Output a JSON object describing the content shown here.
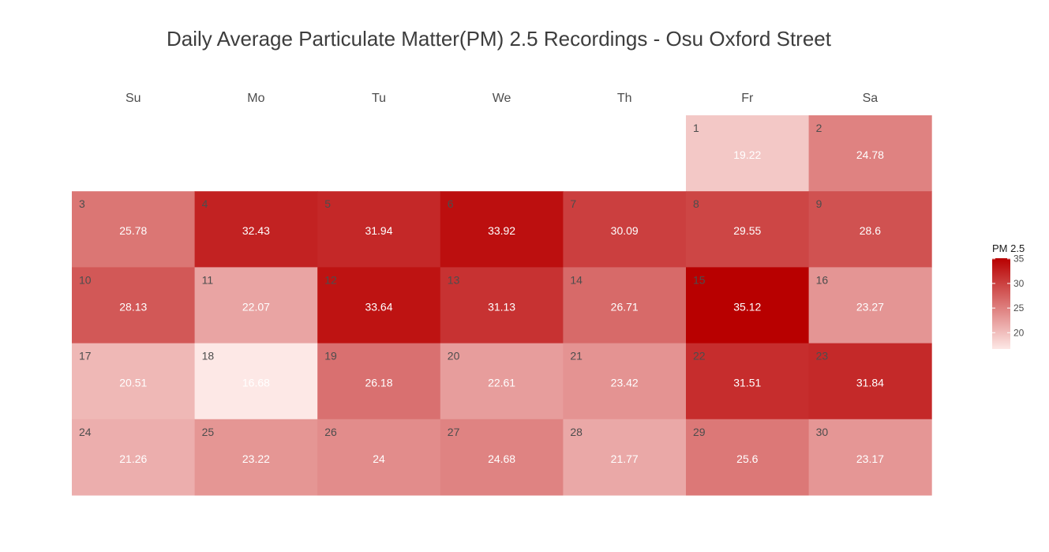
{
  "chart_data": {
    "type": "heatmap",
    "title": "Daily Average Particulate Matter(PM) 2.5 Recordings - Osu Oxford Street",
    "weekdays": [
      "Su",
      "Mo",
      "Tu",
      "We",
      "Th",
      "Fr",
      "Sa"
    ],
    "first_weekday_index": 5,
    "days": [
      1,
      2,
      3,
      4,
      5,
      6,
      7,
      8,
      9,
      10,
      11,
      12,
      13,
      14,
      15,
      16,
      17,
      18,
      19,
      20,
      21,
      22,
      23,
      24,
      25,
      26,
      27,
      28,
      29,
      30
    ],
    "value_labels": [
      "19.22",
      "24.78",
      "25.78",
      "32.43",
      "31.94",
      "33.92",
      "30.09",
      "29.55",
      "28.6",
      "28.13",
      "22.07",
      "33.64",
      "31.13",
      "26.71",
      "35.12",
      "23.27",
      "20.51",
      "16.68",
      "26.18",
      "22.61",
      "23.42",
      "31.51",
      "31.84",
      "21.26",
      "23.22",
      "24",
      "24.68",
      "21.77",
      "25.6",
      "23.17"
    ],
    "values": [
      19.22,
      24.78,
      25.78,
      32.43,
      31.94,
      33.92,
      30.09,
      29.55,
      28.6,
      28.13,
      22.07,
      33.64,
      31.13,
      26.71,
      35.12,
      23.27,
      20.51,
      16.68,
      26.18,
      22.61,
      23.42,
      31.51,
      31.84,
      21.26,
      23.22,
      24,
      24.68,
      21.77,
      25.6,
      23.17
    ],
    "legend": {
      "title": "PM 2.5",
      "ticks": [
        20,
        25,
        30,
        35
      ],
      "tick_labels": [
        "20",
        "25",
        "30",
        "35"
      ],
      "range": [
        16.68,
        35.12
      ],
      "position": "right"
    },
    "colors": {
      "low": "#fde8e6",
      "high": "#b80000"
    },
    "grid": false
  }
}
